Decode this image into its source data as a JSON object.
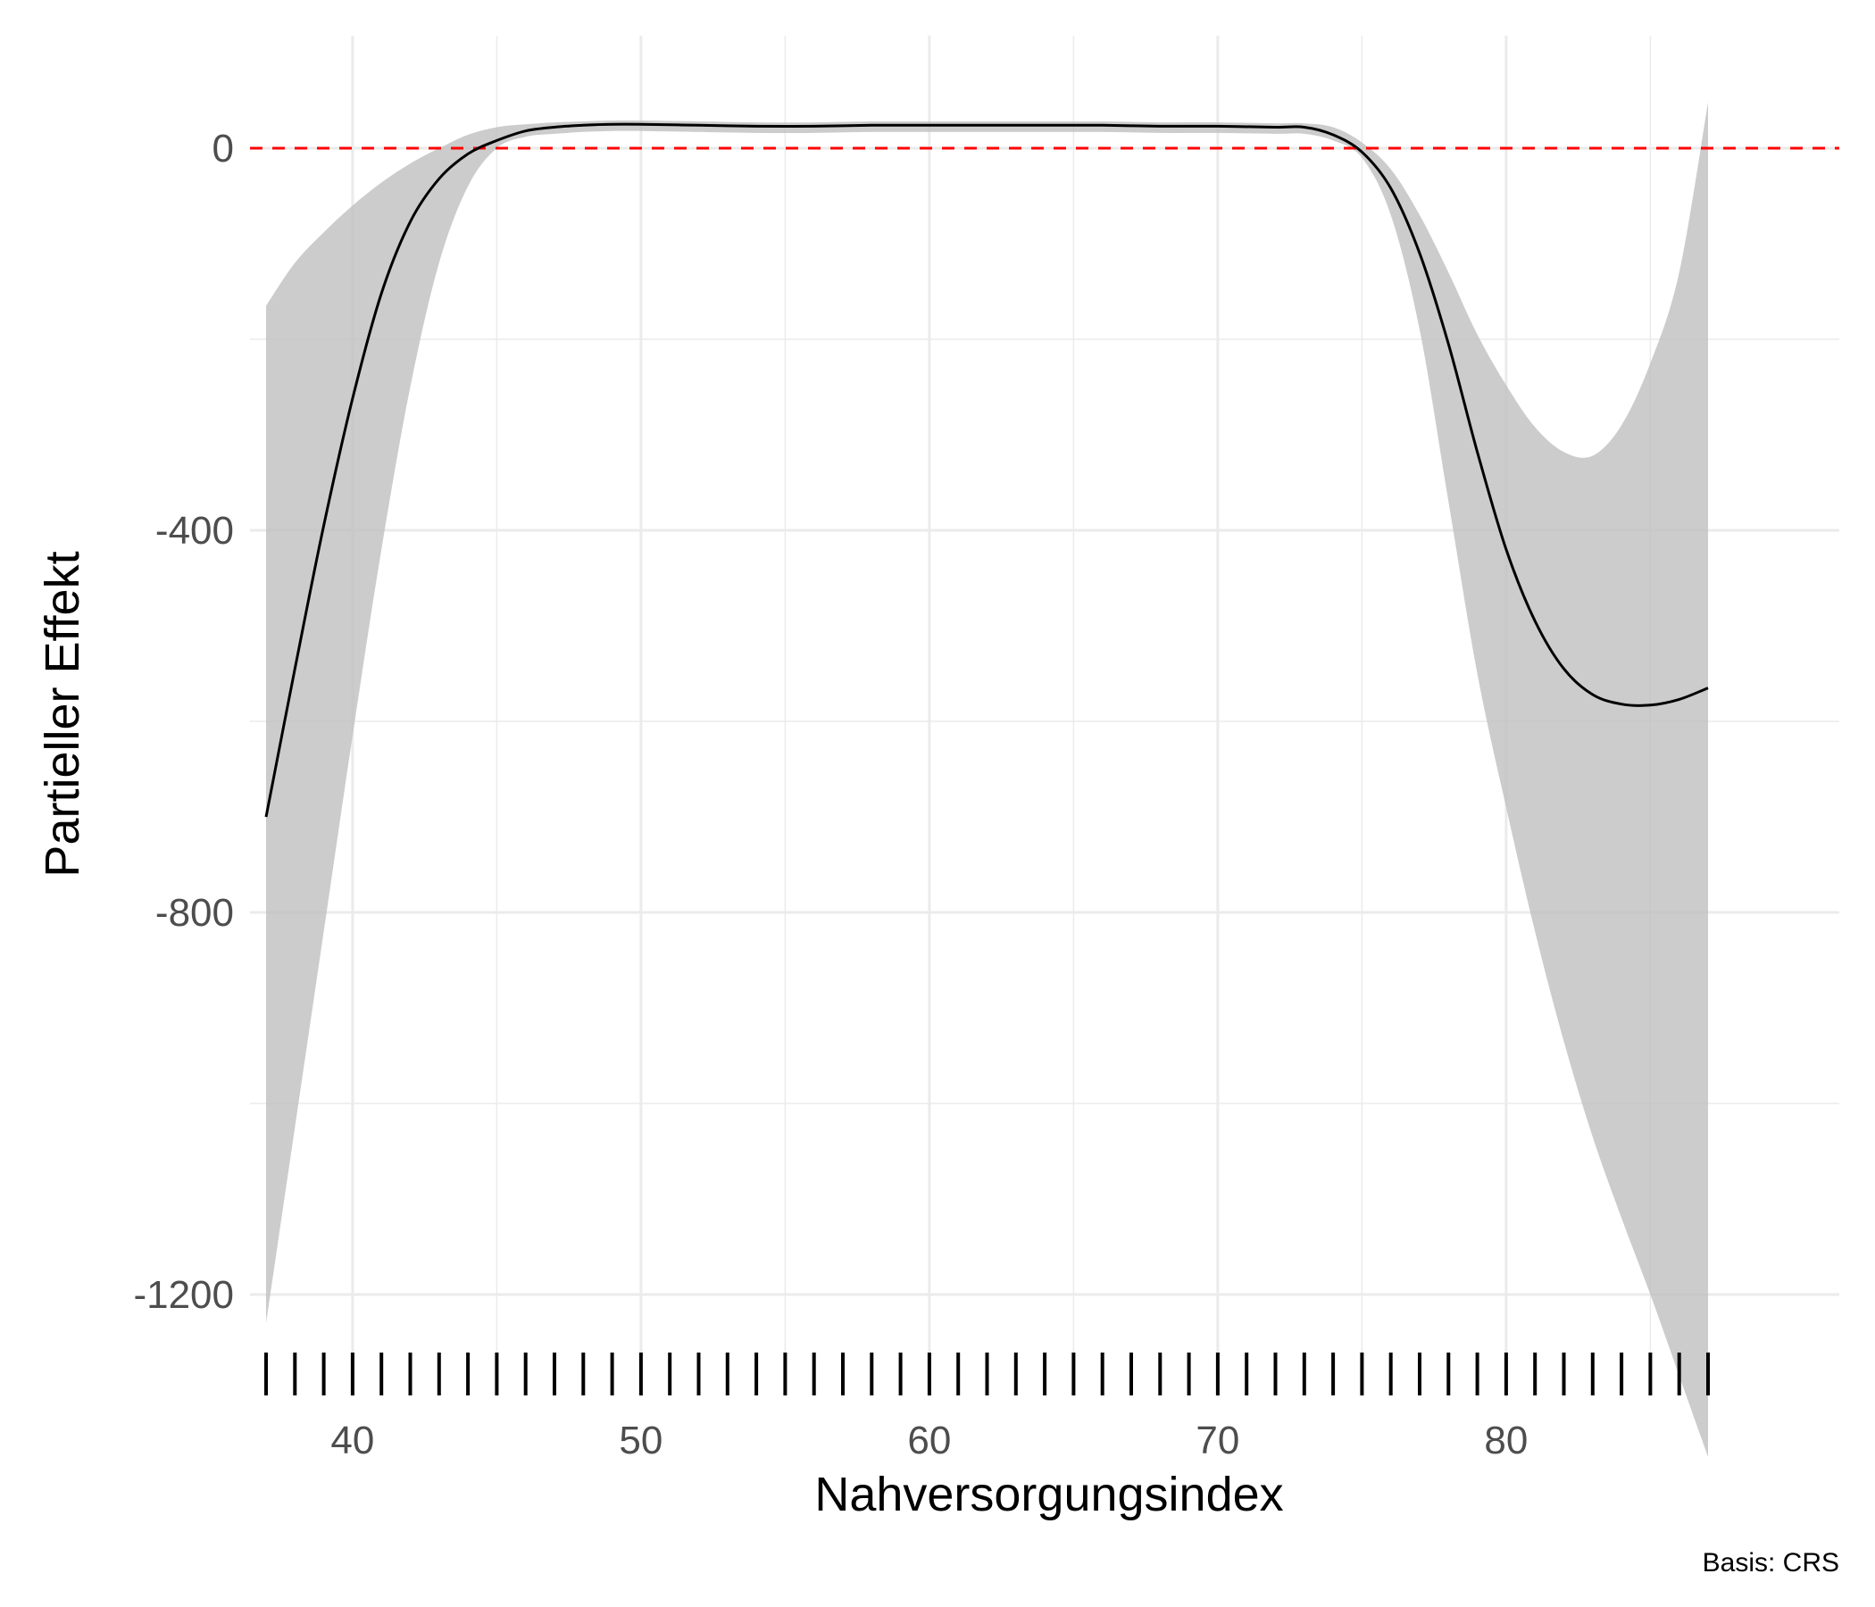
{
  "chart_data": {
    "type": "line",
    "xlabel": "Nahversorgungsindex",
    "ylabel": "Partieller Effekt",
    "caption": "Basis: CRS",
    "xlim": [
      35,
      87.5
    ],
    "ylim": [
      -1300,
      110
    ],
    "x_ticks": [
      40,
      50,
      60,
      70,
      80
    ],
    "x_tick_labels": [
      "40",
      "50",
      "60",
      "70",
      "80"
    ],
    "y_ticks": [
      0,
      -400,
      -800,
      -1200
    ],
    "y_tick_labels": [
      "0",
      "-400",
      "-800",
      "-1200"
    ],
    "x_minor_ticks": [
      45,
      55,
      65,
      75,
      85
    ],
    "y_minor_ticks": [
      -200,
      -600,
      -1000
    ],
    "grid": true,
    "reference_line": {
      "y": 0,
      "color": "#ff0000",
      "style": "dashed"
    },
    "series": [
      {
        "x": [
          37,
          38,
          39,
          40,
          41,
          42,
          43,
          44,
          45,
          46,
          47,
          48,
          49,
          50,
          52,
          54,
          56,
          58,
          60,
          62,
          64,
          66,
          68,
          70,
          72,
          73,
          74,
          75,
          76,
          77,
          78,
          79,
          80,
          81,
          82,
          83,
          84,
          85,
          86,
          87
        ],
        "y": [
          -700,
          -545,
          -395,
          -262,
          -152,
          -77,
          -32,
          -6,
          8,
          18,
          22,
          24,
          25,
          25,
          24,
          23,
          23,
          24,
          24,
          24,
          24,
          24,
          23,
          23,
          22,
          22,
          14,
          -4,
          -42,
          -110,
          -205,
          -318,
          -420,
          -495,
          -545,
          -572,
          -582,
          -583,
          -577,
          -565
        ],
        "lower": [
          -1230,
          -1025,
          -820,
          -615,
          -420,
          -250,
          -120,
          -40,
          0,
          12,
          15,
          17,
          18,
          18,
          17,
          16,
          16,
          17,
          17,
          17,
          17,
          17,
          16,
          16,
          15,
          15,
          8,
          -10,
          -70,
          -190,
          -370,
          -550,
          -690,
          -820,
          -935,
          -1035,
          -1120,
          -1200,
          -1285,
          -1370
        ],
        "upper": [
          -165,
          -120,
          -88,
          -60,
          -36,
          -16,
          0,
          14,
          22,
          25,
          27,
          28,
          29,
          29,
          28,
          27,
          27,
          28,
          28,
          28,
          28,
          28,
          27,
          27,
          26,
          26,
          22,
          6,
          -22,
          -70,
          -130,
          -195,
          -248,
          -292,
          -318,
          -322,
          -290,
          -225,
          -130,
          48
        ]
      }
    ],
    "rug_x": [
      37,
      38,
      39,
      40,
      41,
      42,
      43,
      44,
      45,
      46,
      47,
      48,
      49,
      50,
      51,
      52,
      53,
      54,
      55,
      56,
      57,
      58,
      59,
      60,
      61,
      62,
      63,
      64,
      65,
      66,
      67,
      68,
      69,
      70,
      71,
      72,
      73,
      74,
      75,
      76,
      77,
      78,
      79,
      80,
      81,
      82,
      83,
      84,
      85,
      86,
      87
    ],
    "colors": {
      "line": "#000000",
      "band": "#bebebe",
      "reference": "#ff0000",
      "grid": "#ebebeb",
      "rug": "#000000"
    }
  }
}
